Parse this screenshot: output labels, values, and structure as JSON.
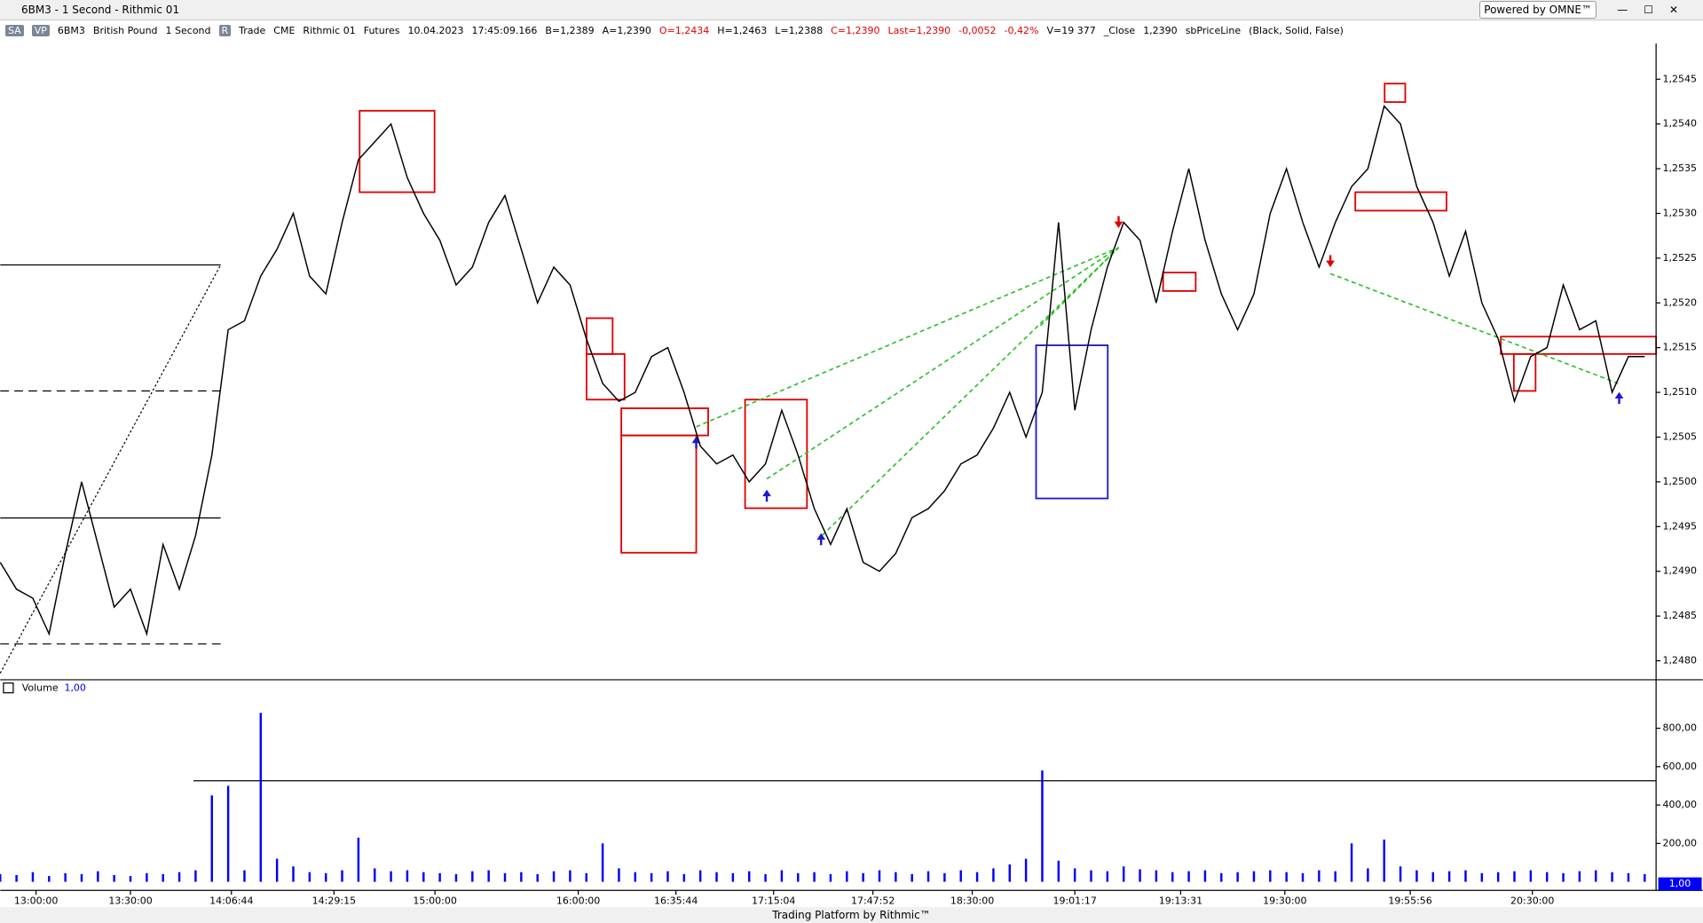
{
  "window": {
    "title": "6BM3 - 1 Second - Rithmic 01",
    "brand": "Powered by OMNE™"
  },
  "toolbar": {
    "items": [
      {
        "text": "SA",
        "color": "#000000",
        "boxed": true
      },
      {
        "text": "VP",
        "color": "#000000",
        "boxed": true
      },
      {
        "text": "6BM3",
        "color": "#000000"
      },
      {
        "text": "British Pound",
        "color": "#000000"
      },
      {
        "text": "1 Second",
        "color": "#000000"
      },
      {
        "text": "R",
        "color": "#000000",
        "boxed": true
      },
      {
        "text": "Trade",
        "color": "#000000"
      },
      {
        "text": "CME",
        "color": "#000000"
      },
      {
        "text": "Rithmic 01",
        "color": "#000000"
      },
      {
        "text": "Futures",
        "color": "#000000"
      },
      {
        "text": "10.04.2023",
        "color": "#000000"
      },
      {
        "text": "17:45:09.166",
        "color": "#000000"
      },
      {
        "text": "B=1,2389",
        "color": "#000000"
      },
      {
        "text": "A=1,2390",
        "color": "#000000"
      },
      {
        "text": "O=1,2434",
        "color": "#e00000"
      },
      {
        "text": "H=1,2463",
        "color": "#000000"
      },
      {
        "text": "L=1,2388",
        "color": "#000000"
      },
      {
        "text": "C=1,2390",
        "color": "#e00000"
      },
      {
        "text": "Last=1,2390",
        "color": "#e00000"
      },
      {
        "text": "-0,0052",
        "color": "#e00000"
      },
      {
        "text": "-0,42%",
        "color": "#e00000"
      },
      {
        "text": "V=19 377",
        "color": "#000000"
      },
      {
        "text": "_Close",
        "color": "#000000"
      },
      {
        "text": "1,2390",
        "color": "#000000"
      },
      {
        "text": "sbPriceLine",
        "color": "#000000"
      },
      {
        "text": "(Black, Solid, False)",
        "color": "#000000"
      }
    ]
  },
  "chart_data": [
    {
      "type": "line",
      "color": "#000000",
      "values": [
        1.2491,
        1.2488,
        1.2487,
        1.2483,
        1.2492,
        1.25,
        1.2493,
        1.2486,
        1.2488,
        1.2483,
        1.2493,
        1.2488,
        1.2494,
        1.2503,
        1.2517,
        1.2518,
        1.2523,
        1.2526,
        1.253,
        1.2523,
        1.2521,
        1.2529,
        1.2536,
        1.2538,
        1.254,
        1.2534,
        1.253,
        1.2527,
        1.2522,
        1.2524,
        1.2529,
        1.2532,
        1.2526,
        1.252,
        1.2524,
        1.2522,
        1.2516,
        1.2511,
        1.2509,
        1.251,
        1.2514,
        1.2515,
        1.251,
        1.2504,
        1.2502,
        1.2503,
        1.25,
        1.2502,
        1.2508,
        1.2503,
        1.2497,
        1.2493,
        1.2497,
        1.2491,
        1.249,
        1.2492,
        1.2496,
        1.2497,
        1.2499,
        1.2502,
        1.2503,
        1.2506,
        1.251,
        1.2505,
        1.251,
        1.2529,
        1.2508,
        1.2517,
        1.2524,
        1.2529,
        1.2527,
        1.252,
        1.2528,
        1.2535,
        1.2527,
        1.2521,
        1.2517,
        1.2521,
        1.253,
        1.2535,
        1.2529,
        1.2524,
        1.2529,
        1.2533,
        1.2535,
        1.2542,
        1.254,
        1.2533,
        1.2529,
        1.2523,
        1.2528,
        1.252,
        1.2516,
        1.2509,
        1.2514,
        1.2515,
        1.2522,
        1.2517,
        1.2518,
        1.251,
        1.2514,
        1.2514
      ],
      "xlim": [
        0,
        101.7
      ],
      "ylim": [
        1.2478,
        1.2549
      ],
      "yticks": [
        {
          "value": 1.248,
          "label": "1,2480"
        },
        {
          "value": 1.2485,
          "label": "1,2485"
        },
        {
          "value": 1.249,
          "label": "1,2490"
        },
        {
          "value": 1.2495,
          "label": "1,2495"
        },
        {
          "value": 1.25,
          "label": "1,2500"
        },
        {
          "value": 1.2505,
          "label": "1,2505"
        },
        {
          "value": 1.251,
          "label": "1,2510"
        },
        {
          "value": 1.2515,
          "label": "1,2515"
        },
        {
          "value": 1.252,
          "label": "1,2520"
        },
        {
          "value": 1.2525,
          "label": "1,2525"
        },
        {
          "value": 1.253,
          "label": "1,2530"
        },
        {
          "value": 1.2535,
          "label": "1,2535"
        },
        {
          "value": 1.254,
          "label": "1,2540"
        },
        {
          "value": 1.2545,
          "label": "1,2545"
        }
      ],
      "xticks": [
        {
          "value": 2.2,
          "label": "13:00:00"
        },
        {
          "value": 8,
          "label": "13:30:00"
        },
        {
          "value": 14.2,
          "label": "14:06:44"
        },
        {
          "value": 20.5,
          "label": "14:29:15"
        },
        {
          "value": 26.7,
          "label": "15:00:00"
        },
        {
          "value": 35.5,
          "label": "16:00:00"
        },
        {
          "value": 41.5,
          "label": "16:35:44"
        },
        {
          "value": 47.5,
          "label": "17:15:04"
        },
        {
          "value": 53.6,
          "label": "17:47:52"
        },
        {
          "value": 59.7,
          "label": "18:30:00"
        },
        {
          "value": 66,
          "label": "19:01:17"
        },
        {
          "value": 72.5,
          "label": "19:13:31"
        },
        {
          "value": 78.9,
          "label": "19:30:00"
        },
        {
          "value": 86.6,
          "label": "19:55:56"
        },
        {
          "value": 94.1,
          "label": "20:30:00"
        }
      ]
    },
    {
      "type": "bar",
      "title": "Volume",
      "subtitle": "1,00",
      "color": "#0000ff",
      "values": [
        40,
        35,
        50,
        30,
        45,
        40,
        55,
        35,
        30,
        45,
        40,
        50,
        60,
        450,
        500,
        60,
        880,
        120,
        80,
        50,
        45,
        60,
        230,
        70,
        55,
        60,
        50,
        45,
        40,
        55,
        60,
        45,
        50,
        40,
        55,
        60,
        45,
        200,
        70,
        50,
        45,
        55,
        40,
        60,
        50,
        45,
        55,
        40,
        60,
        45,
        50,
        40,
        55,
        45,
        60,
        50,
        40,
        55,
        45,
        60,
        50,
        70,
        90,
        120,
        580,
        110,
        70,
        60,
        55,
        80,
        65,
        60,
        50,
        55,
        60,
        45,
        50,
        55,
        60,
        50,
        45,
        60,
        55,
        200,
        70,
        220,
        80,
        60,
        50,
        55,
        60,
        45,
        50,
        55,
        60,
        50,
        45,
        55,
        60,
        50,
        45,
        40
      ],
      "xlim": [
        0,
        101.7
      ],
      "ylim": [
        -45,
        1030
      ],
      "yticks": [
        {
          "value": 200,
          "label": "200,00"
        },
        {
          "value": 400,
          "label": "400,00"
        },
        {
          "value": 600,
          "label": "600,00"
        },
        {
          "value": 800,
          "label": "800,00"
        }
      ]
    }
  ],
  "footer": "Trading Platform by Rithmic™"
}
